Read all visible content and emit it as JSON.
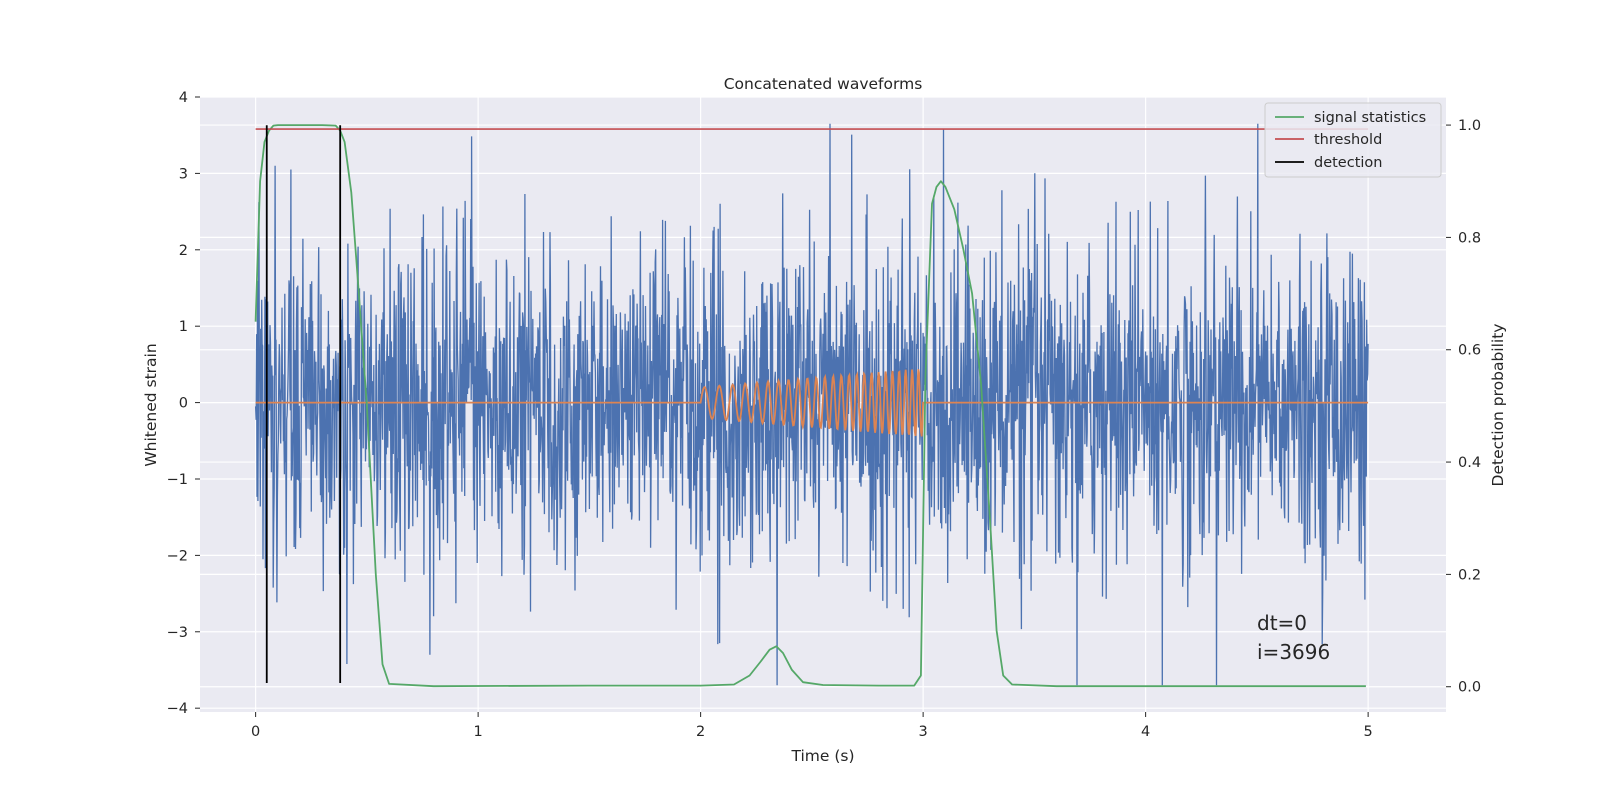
{
  "chart_data": {
    "type": "line",
    "title": "Concatenated waveforms",
    "xlabel": "Time (s)",
    "ylabel": "Whitened strain",
    "ylabel_right": "Detection probability",
    "xlim": [
      -0.25,
      5.35
    ],
    "ylim": [
      -4.05,
      4.0
    ],
    "ylim_right": [
      -0.045,
      1.05
    ],
    "x_ticks": [
      "0",
      "1",
      "2",
      "3",
      "4",
      "5"
    ],
    "y_ticks": [
      "4",
      "3",
      "2",
      "1",
      "0",
      "−1",
      "−2",
      "−3",
      "−4"
    ],
    "y_ticks_right": [
      "1.0",
      "0.8",
      "0.6",
      "0.4",
      "0.2",
      "0.0"
    ],
    "grid": true,
    "legend_placement": "top-right",
    "legend": [
      {
        "label": "signal statistics",
        "color": "#55a868"
      },
      {
        "label": "threshold",
        "color": "#c44e52"
      },
      {
        "label": "detection",
        "color": "#000000"
      }
    ],
    "series": [
      {
        "name": "whitened strain",
        "axis": "left",
        "color": "#4c72b0",
        "description": "noise-like trace, approx. Gaussian, envelope about ±3.5 with spikes to −3.7",
        "x_range": [
          0,
          5
        ],
        "peak_max": 3.65,
        "peak_min": -3.7
      },
      {
        "name": "injected waveform",
        "axis": "left",
        "color": "#dd8452",
        "x_range": [
          0,
          5
        ],
        "chirp_start": 2.0,
        "chirp_end": 3.0,
        "amplitude_start": 0.2,
        "amplitude_end": 0.45
      },
      {
        "name": "signal statistics",
        "axis": "right",
        "color": "#55a868",
        "x": [
          0,
          0.02,
          0.04,
          0.06,
          0.08,
          0.1,
          0.15,
          0.2,
          0.3,
          0.36,
          0.38,
          0.4,
          0.43,
          0.46,
          0.5,
          0.54,
          0.57,
          0.6,
          0.8,
          1.5,
          2.0,
          2.15,
          2.22,
          2.27,
          2.31,
          2.34,
          2.37,
          2.41,
          2.46,
          2.55,
          2.8,
          2.96,
          2.99,
          3.01,
          3.04,
          3.06,
          3.08,
          3.1,
          3.14,
          3.18,
          3.22,
          3.26,
          3.3,
          3.33,
          3.36,
          3.4,
          3.6,
          4.0,
          4.99
        ],
        "y": [
          0.65,
          0.9,
          0.97,
          0.99,
          0.999,
          1.0,
          1.0,
          1.0,
          1.0,
          0.999,
          0.99,
          0.97,
          0.88,
          0.72,
          0.5,
          0.2,
          0.04,
          0.005,
          0.001,
          0.002,
          0.002,
          0.004,
          0.02,
          0.045,
          0.066,
          0.072,
          0.06,
          0.03,
          0.008,
          0.003,
          0.002,
          0.002,
          0.02,
          0.55,
          0.86,
          0.89,
          0.9,
          0.89,
          0.85,
          0.78,
          0.7,
          0.54,
          0.3,
          0.1,
          0.02,
          0.004,
          0.001,
          0.001,
          0.001
        ]
      },
      {
        "name": "threshold",
        "axis": "right",
        "color": "#c44e52",
        "x": [
          0,
          5
        ],
        "y": [
          0.993,
          0.993
        ]
      },
      {
        "name": "detection",
        "axis": "left",
        "color": "#000000",
        "times": [
          0.05,
          0.38
        ],
        "y_range": [
          -3.67,
          3.63
        ]
      }
    ],
    "annotation": {
      "x": 4.5,
      "lines": [
        "dt=0",
        "i=3696"
      ]
    }
  }
}
